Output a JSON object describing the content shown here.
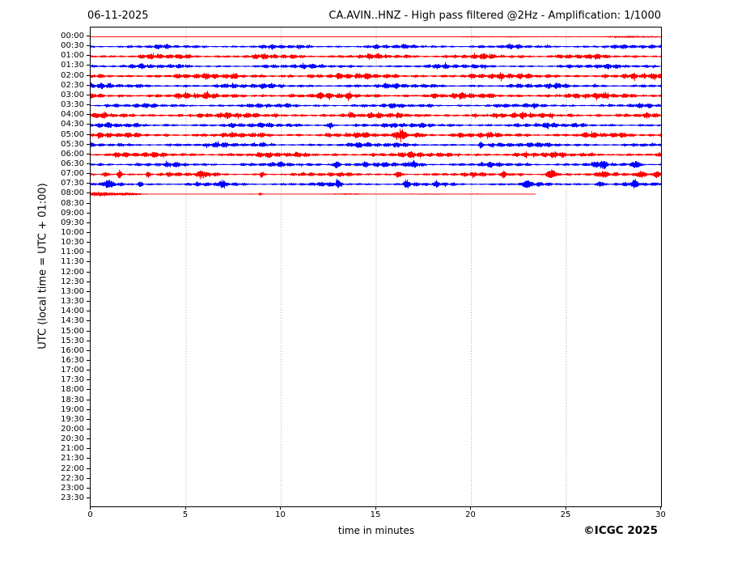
{
  "header": {
    "date": "06-11-2025",
    "title": "CA.AVIN..HNZ - High pass filtered @2Hz - Amplification: 1/1000"
  },
  "footer": {
    "copyright": "©ICGC 2025"
  },
  "chart_data": {
    "type": "helicorder",
    "title": "CA.AVIN..HNZ - High pass filtered @2Hz - Amplification: 1/1000",
    "date": "06-11-2025",
    "xlabel": "time in minutes",
    "ylabel": "UTC (local time = UTC + 01:00)",
    "xlim": [
      0,
      30
    ],
    "x_ticks": [
      0,
      5,
      10,
      15,
      20,
      25,
      30
    ],
    "grid": {
      "vertical_at": [
        5,
        10,
        15,
        20,
        25
      ],
      "style": "dotted",
      "color": "#808080"
    },
    "colors": {
      "trace_red": "#ff0000",
      "trace_blue": "#0000ff",
      "axis": "#000000"
    },
    "row_labels": [
      "00:00",
      "00:30",
      "01:00",
      "01:30",
      "02:00",
      "02:30",
      "03:00",
      "03:30",
      "04:00",
      "04:30",
      "05:00",
      "05:30",
      "06:00",
      "06:30",
      "07:00",
      "07:30",
      "08:00",
      "08:30",
      "09:00",
      "09:30",
      "10:00",
      "10:30",
      "11:00",
      "11:30",
      "12:00",
      "12:30",
      "13:00",
      "13:30",
      "14:00",
      "14:30",
      "15:00",
      "15:30",
      "16:00",
      "16:30",
      "17:00",
      "17:30",
      "18:00",
      "18:30",
      "19:00",
      "19:30",
      "20:00",
      "20:30",
      "21:00",
      "21:30",
      "22:00",
      "22:30",
      "23:00",
      "23:30"
    ],
    "traces": [
      {
        "label": "00:00",
        "color": "#ff0000",
        "base": 0.3,
        "seed": 11,
        "mod": 0.15,
        "end": 30,
        "events": [
          {
            "t": 22.5,
            "a": 0.5,
            "w": 4.0
          },
          {
            "t": 28.8,
            "a": 0.9,
            "w": 1.6
          }
        ]
      },
      {
        "label": "00:30",
        "color": "#0000ff",
        "base": 2.6,
        "seed": 22,
        "mod": 1,
        "end": 30,
        "events": []
      },
      {
        "label": "01:00",
        "color": "#ff0000",
        "base": 3.3,
        "seed": 33,
        "mod": 1,
        "end": 30,
        "events": []
      },
      {
        "label": "01:30",
        "color": "#0000ff",
        "base": 2.8,
        "seed": 44,
        "mod": 1,
        "end": 30,
        "events": []
      },
      {
        "label": "02:00",
        "color": "#ff0000",
        "base": 3.6,
        "seed": 55,
        "mod": 1,
        "end": 30,
        "events": []
      },
      {
        "label": "02:30",
        "color": "#0000ff",
        "base": 3.0,
        "seed": 66,
        "mod": 1,
        "end": 30,
        "events": []
      },
      {
        "label": "03:00",
        "color": "#ff0000",
        "base": 3.6,
        "seed": 77,
        "mod": 1,
        "end": 30,
        "events": []
      },
      {
        "label": "03:30",
        "color": "#0000ff",
        "base": 2.7,
        "seed": 88,
        "mod": 1,
        "end": 30,
        "events": []
      },
      {
        "label": "04:00",
        "color": "#ff0000",
        "base": 3.5,
        "seed": 99,
        "mod": 1,
        "end": 30,
        "events": []
      },
      {
        "label": "04:30",
        "color": "#0000ff",
        "base": 3.0,
        "seed": 110,
        "mod": 1,
        "end": 30,
        "events": [
          {
            "t": 12.6,
            "a": 3.5,
            "w": 0.12
          }
        ]
      },
      {
        "label": "05:00",
        "color": "#ff0000",
        "base": 3.3,
        "seed": 121,
        "mod": 1,
        "end": 30,
        "events": [
          {
            "t": 16.35,
            "a": 4.5,
            "w": 0.3
          },
          {
            "t": 17.2,
            "a": 2.2,
            "w": 0.25
          }
        ]
      },
      {
        "label": "05:30",
        "color": "#0000ff",
        "base": 3.0,
        "seed": 132,
        "mod": 1,
        "end": 30,
        "events": [
          {
            "t": 20.5,
            "a": 3.5,
            "w": 0.1
          }
        ]
      },
      {
        "label": "06:00",
        "color": "#ff0000",
        "base": 3.4,
        "seed": 143,
        "mod": 1,
        "end": 30,
        "events": []
      },
      {
        "label": "06:30",
        "color": "#0000ff",
        "base": 2.9,
        "seed": 154,
        "mod": 1,
        "end": 30,
        "events": [
          {
            "t": 12.9,
            "a": 3.5,
            "w": 0.2
          },
          {
            "t": 14.4,
            "a": 2.5,
            "w": 0.15
          },
          {
            "t": 16.9,
            "a": 2.0,
            "w": 0.4
          },
          {
            "t": 26.9,
            "a": 3.0,
            "w": 0.2
          },
          {
            "t": 28.7,
            "a": 3.0,
            "w": 0.2
          }
        ]
      },
      {
        "label": "07:00",
        "color": "#ff0000",
        "base": 2.6,
        "seed": 165,
        "mod": 1,
        "end": 30,
        "events": [
          {
            "t": 0.8,
            "a": 3.0,
            "w": 0.15
          },
          {
            "t": 1.5,
            "a": 4.5,
            "w": 0.12
          },
          {
            "t": 3.0,
            "a": 3.5,
            "w": 0.12
          },
          {
            "t": 5.8,
            "a": 3.0,
            "w": 0.2
          },
          {
            "t": 9.0,
            "a": 2.5,
            "w": 0.12
          },
          {
            "t": 16.2,
            "a": 3.5,
            "w": 0.2
          },
          {
            "t": 21.7,
            "a": 3.0,
            "w": 0.15
          },
          {
            "t": 24.2,
            "a": 5.5,
            "w": 0.25
          },
          {
            "t": 26.9,
            "a": 2.5,
            "w": 0.15
          },
          {
            "t": 28.9,
            "a": 3.2,
            "w": 0.15
          },
          {
            "t": 29.8,
            "a": 3.5,
            "w": 0.15
          }
        ]
      },
      {
        "label": "07:30",
        "color": "#0000ff",
        "base": 2.6,
        "seed": 176,
        "mod": 1,
        "end": 30,
        "events": [
          {
            "t": 0.9,
            "a": 4.0,
            "w": 0.15
          },
          {
            "t": 2.6,
            "a": 3.0,
            "w": 0.12
          },
          {
            "t": 6.9,
            "a": 4.2,
            "w": 0.15
          },
          {
            "t": 13.0,
            "a": 3.2,
            "w": 0.15
          },
          {
            "t": 16.6,
            "a": 3.5,
            "w": 0.15
          },
          {
            "t": 18.2,
            "a": 3.0,
            "w": 0.12
          },
          {
            "t": 22.9,
            "a": 4.5,
            "w": 0.15
          },
          {
            "t": 26.8,
            "a": 3.0,
            "w": 0.2
          },
          {
            "t": 28.6,
            "a": 3.0,
            "w": 0.2
          }
        ]
      },
      {
        "label": "08:00",
        "color": "#ff0000",
        "base": 0.5,
        "seed": 187,
        "mod": 0.3,
        "end": 23.4,
        "events": [
          {
            "t": 0.5,
            "a": 2.2,
            "w": 0.9
          },
          {
            "t": 2.0,
            "a": 1.0,
            "w": 0.7
          },
          {
            "t": 8.9,
            "a": 1.3,
            "w": 0.08
          },
          {
            "t": 13.0,
            "a": 0.35,
            "w": 2.0
          },
          {
            "t": 17.5,
            "a": 0.4,
            "w": 1.2
          }
        ]
      }
    ]
  }
}
